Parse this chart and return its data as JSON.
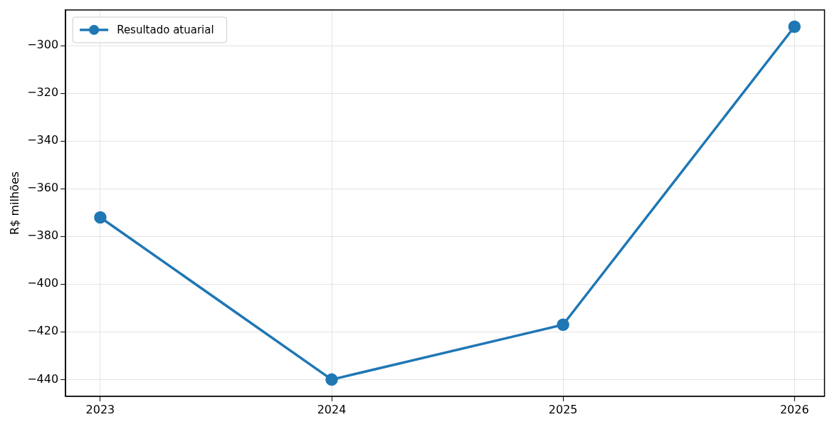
{
  "chart_data": {
    "type": "line",
    "ylabel": "R$ milhões",
    "x": [
      2023,
      2024,
      2025,
      2026
    ],
    "series": [
      {
        "name": "Resultado atuarial",
        "color": "#1f77b4",
        "values": [
          -372,
          -440,
          -417,
          -292
        ]
      }
    ],
    "xlim": [
      2022.85,
      2026.13
    ],
    "xticks": [
      2023,
      2024,
      2025,
      2026
    ],
    "ylim": [
      -447,
      -285
    ],
    "yticks": [
      {
        "value": -440,
        "label": "−440"
      },
      {
        "value": -420,
        "label": "−420"
      },
      {
        "value": -400,
        "label": "−400"
      },
      {
        "value": -380,
        "label": "−380"
      },
      {
        "value": -360,
        "label": "−360"
      },
      {
        "value": -340,
        "label": "−340"
      },
      {
        "value": -320,
        "label": "−320"
      },
      {
        "value": -300,
        "label": "−300"
      }
    ],
    "grid": true,
    "legend": "top left",
    "marker": "circle",
    "line_style": "solid"
  }
}
